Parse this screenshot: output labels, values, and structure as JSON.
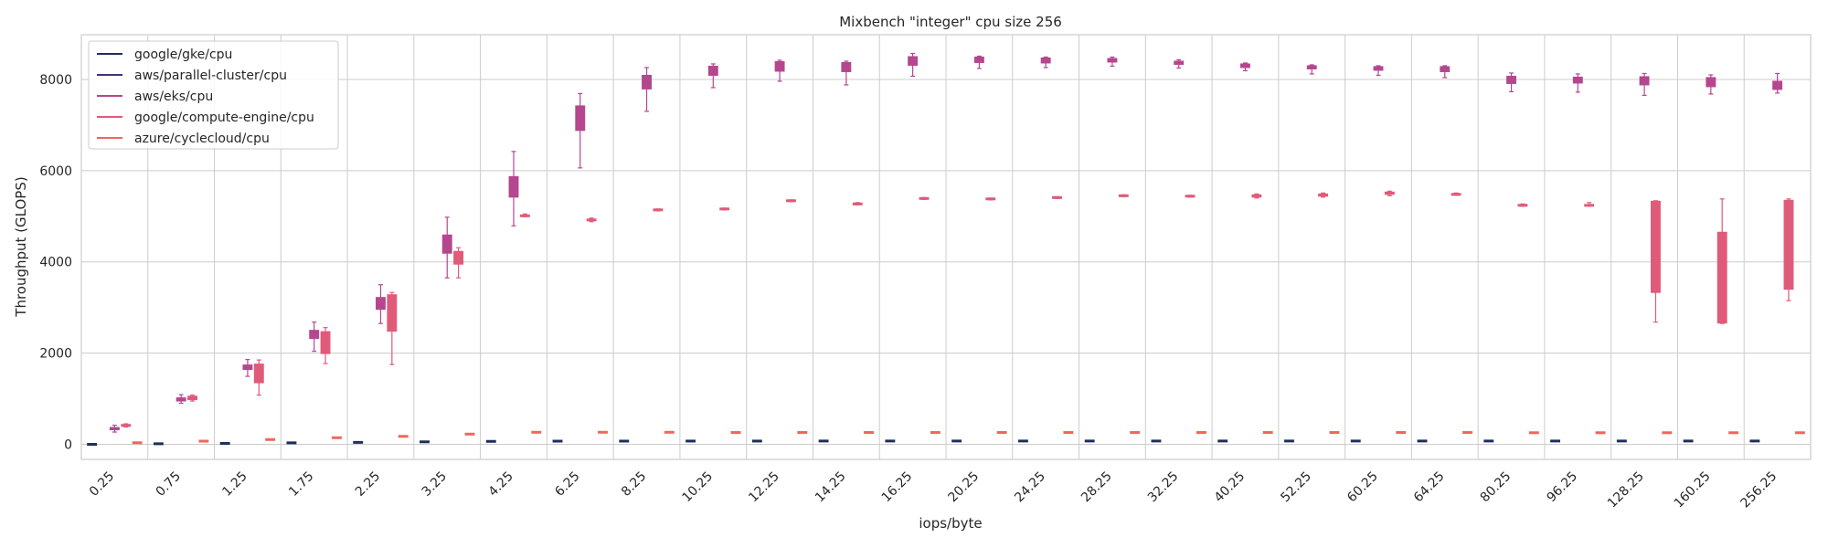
{
  "chart_data": {
    "type": "box",
    "title": "Mixbench \"integer\" cpu size 256",
    "xlabel": "iops/byte",
    "ylabel": "Throughput (GLOPS)",
    "ylim": [
      -330,
      8980
    ],
    "yticks": [
      0,
      2000,
      4000,
      6000,
      8000
    ],
    "grid": true,
    "legend_position": "top-left",
    "categories": [
      "0.25",
      "0.75",
      "1.25",
      "1.75",
      "2.25",
      "3.25",
      "4.25",
      "6.25",
      "8.25",
      "10.25",
      "12.25",
      "14.25",
      "16.25",
      "20.25",
      "24.25",
      "28.25",
      "32.25",
      "40.25",
      "52.25",
      "60.25",
      "64.25",
      "80.25",
      "96.25",
      "128.25",
      "160.25",
      "256.25"
    ],
    "series": [
      {
        "name": "google/gke/cpu",
        "color": "#1f2f5a",
        "boxes": [
          [
            -5,
            -3,
            0,
            3,
            5
          ],
          [
            8,
            11,
            13,
            15,
            17
          ],
          [
            16,
            19,
            21,
            23,
            25
          ],
          [
            28,
            31,
            33,
            35,
            37
          ],
          [
            38,
            41,
            43,
            45,
            47
          ],
          [
            50,
            53,
            55,
            57,
            60
          ],
          [
            60,
            63,
            65,
            67,
            70
          ],
          [
            65,
            68,
            70,
            72,
            75
          ],
          [
            66,
            69,
            71,
            73,
            76
          ],
          [
            67,
            70,
            72,
            74,
            77
          ],
          [
            67,
            70,
            72,
            74,
            77
          ],
          [
            68,
            71,
            73,
            75,
            78
          ],
          [
            68,
            71,
            73,
            75,
            78
          ],
          [
            68,
            71,
            73,
            75,
            78
          ],
          [
            68,
            71,
            73,
            75,
            78
          ],
          [
            68,
            71,
            73,
            75,
            78
          ],
          [
            68,
            71,
            73,
            75,
            78
          ],
          [
            68,
            71,
            73,
            75,
            78
          ],
          [
            68,
            71,
            73,
            75,
            78
          ],
          [
            68,
            71,
            73,
            75,
            78
          ],
          [
            68,
            71,
            73,
            75,
            78
          ],
          [
            68,
            71,
            73,
            75,
            78
          ],
          [
            68,
            71,
            73,
            75,
            78
          ],
          [
            68,
            71,
            73,
            75,
            78
          ],
          [
            68,
            71,
            73,
            75,
            78
          ],
          [
            68,
            71,
            73,
            75,
            78
          ]
        ]
      },
      {
        "name": "aws/parallel-cluster/cpu",
        "color": "#4b2c7a",
        "boxes": []
      },
      {
        "name": "aws/eks/cpu",
        "color": "#b5478f",
        "boxes": [
          [
            270,
            320,
            345,
            370,
            420
          ],
          [
            900,
            950,
            990,
            1020,
            1090
          ],
          [
            1490,
            1640,
            1700,
            1740,
            1860
          ],
          [
            2040,
            2320,
            2400,
            2500,
            2680
          ],
          [
            2650,
            2960,
            3080,
            3220,
            3500
          ],
          [
            3650,
            4190,
            4380,
            4590,
            4980
          ],
          [
            4790,
            5420,
            5620,
            5870,
            6420
          ],
          [
            6060,
            6880,
            7200,
            7420,
            7690
          ],
          [
            7300,
            7790,
            7960,
            8090,
            8260
          ],
          [
            7820,
            8090,
            8180,
            8290,
            8340
          ],
          [
            7960,
            8180,
            8270,
            8390,
            8420
          ],
          [
            7880,
            8170,
            8280,
            8370,
            8400
          ],
          [
            8070,
            8310,
            8430,
            8500,
            8570
          ],
          [
            8240,
            8370,
            8440,
            8490,
            8510
          ],
          [
            8260,
            8360,
            8400,
            8470,
            8490
          ],
          [
            8290,
            8380,
            8420,
            8460,
            8490
          ],
          [
            8250,
            8330,
            8370,
            8400,
            8430
          ],
          [
            8190,
            8260,
            8300,
            8340,
            8360
          ],
          [
            8120,
            8230,
            8260,
            8300,
            8320
          ],
          [
            8090,
            8200,
            8240,
            8280,
            8300
          ],
          [
            8040,
            8170,
            8220,
            8280,
            8300
          ],
          [
            7730,
            7910,
            7980,
            8070,
            8140
          ],
          [
            7720,
            7920,
            7980,
            8050,
            8120
          ],
          [
            7650,
            7880,
            7960,
            8060,
            8130
          ],
          [
            7680,
            7840,
            7940,
            8040,
            8100
          ],
          [
            7700,
            7780,
            7850,
            7960,
            8130
          ]
        ]
      },
      {
        "name": "google/compute-engine/cpu",
        "color": "#e05a7a",
        "boxes": [
          [
            380,
            400,
            415,
            430,
            450
          ],
          [
            950,
            980,
            1020,
            1055,
            1080
          ],
          [
            1080,
            1350,
            1550,
            1760,
            1850
          ],
          [
            1770,
            1990,
            2200,
            2470,
            2560
          ],
          [
            1750,
            2480,
            2900,
            3280,
            3330
          ],
          [
            3650,
            3950,
            4100,
            4230,
            4310
          ],
          [
            4990,
            5000,
            5010,
            5030,
            5050
          ],
          [
            4880,
            4900,
            4920,
            4940,
            4960
          ],
          [
            5120,
            5130,
            5140,
            5150,
            5160
          ],
          [
            5140,
            5150,
            5160,
            5170,
            5180
          ],
          [
            5320,
            5330,
            5340,
            5350,
            5360
          ],
          [
            5250,
            5260,
            5270,
            5290,
            5300
          ],
          [
            5370,
            5380,
            5390,
            5400,
            5410
          ],
          [
            5360,
            5370,
            5380,
            5390,
            5400
          ],
          [
            5390,
            5400,
            5410,
            5420,
            5430
          ],
          [
            5430,
            5440,
            5450,
            5460,
            5470
          ],
          [
            5420,
            5430,
            5440,
            5450,
            5460
          ],
          [
            5400,
            5420,
            5440,
            5470,
            5490
          ],
          [
            5420,
            5440,
            5460,
            5490,
            5510
          ],
          [
            5450,
            5480,
            5500,
            5530,
            5550
          ],
          [
            5460,
            5470,
            5480,
            5500,
            5510
          ],
          [
            5220,
            5230,
            5240,
            5260,
            5270
          ],
          [
            5220,
            5230,
            5240,
            5270,
            5300
          ],
          [
            2680,
            3330,
            4200,
            5330,
            5340
          ],
          [
            2650,
            2660,
            3700,
            4650,
            5380
          ],
          [
            3150,
            3400,
            4500,
            5350,
            5380
          ]
        ]
      },
      {
        "name": "azure/cyclecloud/cpu",
        "color": "#f0665d",
        "boxes": [
          [
            25,
            30,
            35,
            40,
            45
          ],
          [
            60,
            65,
            70,
            75,
            80
          ],
          [
            95,
            100,
            105,
            110,
            115
          ],
          [
            135,
            140,
            145,
            150,
            155
          ],
          [
            165,
            170,
            175,
            180,
            185
          ],
          [
            215,
            220,
            225,
            230,
            235
          ],
          [
            255,
            260,
            265,
            270,
            275
          ],
          [
            255,
            260,
            265,
            270,
            275
          ],
          [
            255,
            260,
            265,
            270,
            275
          ],
          [
            250,
            255,
            260,
            265,
            270
          ],
          [
            250,
            255,
            260,
            265,
            270
          ],
          [
            250,
            255,
            260,
            265,
            270
          ],
          [
            250,
            255,
            260,
            265,
            270
          ],
          [
            250,
            255,
            260,
            265,
            270
          ],
          [
            250,
            255,
            260,
            265,
            270
          ],
          [
            250,
            255,
            260,
            265,
            270
          ],
          [
            250,
            255,
            260,
            265,
            270
          ],
          [
            250,
            255,
            260,
            265,
            270
          ],
          [
            250,
            255,
            260,
            265,
            270
          ],
          [
            250,
            255,
            260,
            265,
            270
          ],
          [
            250,
            255,
            260,
            265,
            270
          ],
          [
            245,
            250,
            255,
            260,
            265
          ],
          [
            245,
            250,
            255,
            260,
            265
          ],
          [
            245,
            250,
            255,
            260,
            265
          ],
          [
            245,
            250,
            255,
            260,
            265
          ],
          [
            245,
            250,
            255,
            260,
            265
          ]
        ]
      }
    ]
  }
}
